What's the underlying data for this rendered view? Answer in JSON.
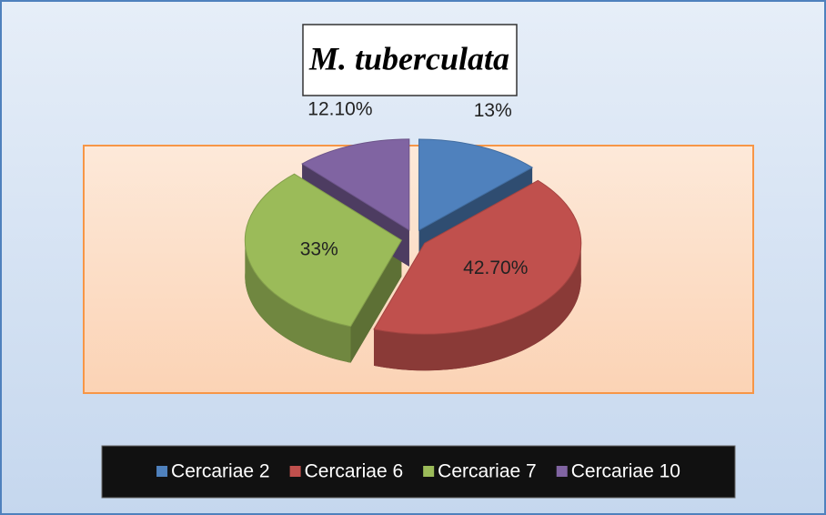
{
  "chart_data": {
    "type": "pie",
    "title": "M. tuberculata",
    "categories": [
      "Cercariae 2",
      "Cercariae 6",
      "Cercariae 7",
      "Cercariae 10"
    ],
    "values": [
      13,
      42.7,
      33,
      12.1
    ],
    "value_labels": [
      "13%",
      "42.70%",
      "33%",
      "12.10%"
    ],
    "colors": [
      "#4f81bd",
      "#c0504d",
      "#9bbb59",
      "#8064a2"
    ],
    "legend": "bottom"
  }
}
